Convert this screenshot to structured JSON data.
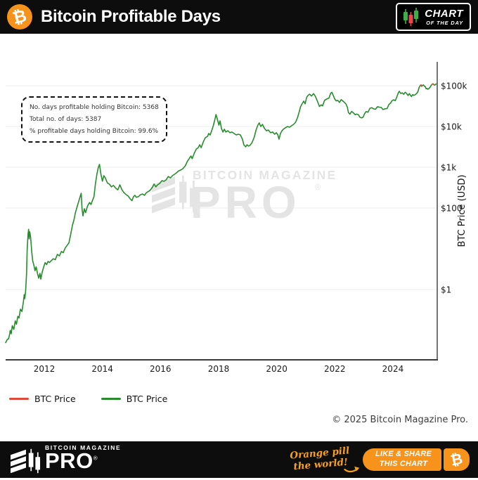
{
  "header": {
    "title": "Bitcoin Profitable Days",
    "badge_line1": "CHART",
    "badge_line2": "OF THE DAY"
  },
  "annotation": {
    "line1": "No. days profitable holding Bitcoin: 5368",
    "line2": "Total no. of days: 5387",
    "line3": "% profitable days holding Bitcoin: 99.6%"
  },
  "watermark": {
    "line1": "BITCOIN MAGAZINE",
    "line2": "PRO",
    "reg": "®"
  },
  "legend": [
    {
      "label": "BTC Price",
      "color": "#e04a3a"
    },
    {
      "label": "BTC Price",
      "color": "#288c2d"
    }
  ],
  "copyright": "© 2025 Bitcoin Magazine Pro.",
  "footer": {
    "brand_top": "BITCOIN MAGAZINE",
    "brand_main": "PRO",
    "reg": "®",
    "tagline_line1": "Orange pill",
    "tagline_line2": "the world!",
    "button_line1": "LIKE & SHARE",
    "button_line2": "THIS CHART",
    "btc_symbol": "₿"
  },
  "logo_symbol": "₿",
  "colors": {
    "accent_orange": "#f7931a",
    "line_green": "#288c2d",
    "line_red": "#e04a3a",
    "grid": "#ececec",
    "axis": "#3a3a3a",
    "watermark": "#e4e4e4"
  },
  "chart_data": {
    "type": "line",
    "title": "Bitcoin Profitable Days",
    "x_axis": {
      "ticks": [
        2012,
        2014,
        2016,
        2018,
        2020,
        2022,
        2024
      ],
      "range": [
        2010.6,
        2025.55
      ]
    },
    "y_axis": {
      "label": "BTC Price (USD)",
      "scale": "log",
      "ticks": [
        {
          "label": "$100k",
          "value": 100000
        },
        {
          "label": "$10k",
          "value": 10000
        },
        {
          "label": "$1k",
          "value": 1000
        },
        {
          "label": "$100",
          "value": 100
        },
        {
          "label": "$1",
          "value": 1
        }
      ]
    },
    "grid": true,
    "legend_position": "bottom-left",
    "series": [
      {
        "name": "BTC Price",
        "color": "#288c2d",
        "points": [
          [
            2010.67,
            0.05
          ],
          [
            2010.73,
            0.06
          ],
          [
            2010.77,
            0.062
          ],
          [
            2010.8,
            0.075
          ],
          [
            2010.83,
            0.1
          ],
          [
            2010.86,
            0.082
          ],
          [
            2010.9,
            0.13
          ],
          [
            2010.95,
            0.105
          ],
          [
            2011.0,
            0.17
          ],
          [
            2011.04,
            0.14
          ],
          [
            2011.09,
            0.22
          ],
          [
            2011.13,
            0.2
          ],
          [
            2011.18,
            0.33
          ],
          [
            2011.23,
            0.29
          ],
          [
            2011.28,
            0.49
          ],
          [
            2011.31,
            0.75
          ],
          [
            2011.33,
            0.6
          ],
          [
            2011.36,
            0.95
          ],
          [
            2011.39,
            2.5
          ],
          [
            2011.41,
            9
          ],
          [
            2011.44,
            23
          ],
          [
            2011.46,
            30
          ],
          [
            2011.48,
            17.5
          ],
          [
            2011.5,
            26
          ],
          [
            2011.53,
            19
          ],
          [
            2011.57,
            8.2
          ],
          [
            2011.6,
            5.1
          ],
          [
            2011.64,
            4.0
          ],
          [
            2011.68,
            2.9
          ],
          [
            2011.72,
            3.6
          ],
          [
            2011.77,
            2.4
          ],
          [
            2011.81,
            1.9
          ],
          [
            2011.85,
            2.5
          ],
          [
            2011.88,
            1.8
          ],
          [
            2011.93,
            2.7
          ],
          [
            2011.98,
            3.6
          ],
          [
            2012.03,
            4.6
          ],
          [
            2012.08,
            4.1
          ],
          [
            2012.13,
            4.9
          ],
          [
            2012.18,
            4.6
          ],
          [
            2012.24,
            5.1
          ],
          [
            2012.31,
            5.7
          ],
          [
            2012.38,
            5.4
          ],
          [
            2012.45,
            7.3
          ],
          [
            2012.52,
            6.7
          ],
          [
            2012.59,
            8.6
          ],
          [
            2012.65,
            8.0
          ],
          [
            2012.72,
            10.5
          ],
          [
            2012.79,
            12.3
          ],
          [
            2012.85,
            14.0
          ],
          [
            2012.9,
            21
          ],
          [
            2012.97,
            38
          ],
          [
            2013.02,
            51
          ],
          [
            2013.07,
            76
          ],
          [
            2013.14,
            113
          ],
          [
            2013.21,
            167
          ],
          [
            2013.27,
            230
          ],
          [
            2013.3,
            96
          ],
          [
            2013.33,
            64
          ],
          [
            2013.38,
            96
          ],
          [
            2013.42,
            77
          ],
          [
            2013.49,
            113
          ],
          [
            2013.56,
            137
          ],
          [
            2013.61,
            122
          ],
          [
            2013.66,
            155
          ],
          [
            2013.71,
            190
          ],
          [
            2013.76,
            385
          ],
          [
            2013.81,
            670
          ],
          [
            2013.86,
            1000
          ],
          [
            2013.9,
            1175
          ],
          [
            2013.95,
            670
          ],
          [
            2014.0,
            455
          ],
          [
            2014.05,
            620
          ],
          [
            2014.1,
            550
          ],
          [
            2014.17,
            415
          ],
          [
            2014.24,
            385
          ],
          [
            2014.31,
            330
          ],
          [
            2014.38,
            357
          ],
          [
            2014.46,
            305
          ],
          [
            2014.53,
            280
          ],
          [
            2014.6,
            370
          ],
          [
            2014.67,
            282
          ],
          [
            2014.74,
            240
          ],
          [
            2014.82,
            212
          ],
          [
            2014.89,
            196
          ],
          [
            2014.96,
            167
          ],
          [
            2015.02,
            152
          ],
          [
            2015.07,
            190
          ],
          [
            2015.12,
            205
          ],
          [
            2015.17,
            183
          ],
          [
            2015.24,
            190
          ],
          [
            2015.31,
            212
          ],
          [
            2015.38,
            221
          ],
          [
            2015.45,
            205
          ],
          [
            2015.52,
            240
          ],
          [
            2015.6,
            258
          ],
          [
            2015.66,
            282
          ],
          [
            2015.73,
            330
          ],
          [
            2015.78,
            388
          ],
          [
            2015.84,
            330
          ],
          [
            2015.9,
            370
          ],
          [
            2015.97,
            400
          ],
          [
            2016.05,
            470
          ],
          [
            2016.12,
            452
          ],
          [
            2016.19,
            490
          ],
          [
            2016.27,
            595
          ],
          [
            2016.34,
            550
          ],
          [
            2016.41,
            620
          ],
          [
            2016.48,
            672
          ],
          [
            2016.55,
            730
          ],
          [
            2016.63,
            820
          ],
          [
            2016.7,
            855
          ],
          [
            2016.77,
            925
          ],
          [
            2016.85,
            1080
          ],
          [
            2016.92,
            1370
          ],
          [
            2017.0,
            1680
          ],
          [
            2017.05,
            1890
          ],
          [
            2017.09,
            1620
          ],
          [
            2017.16,
            2200
          ],
          [
            2017.23,
            2780
          ],
          [
            2017.3,
            3030
          ],
          [
            2017.35,
            3560
          ],
          [
            2017.4,
            3030
          ],
          [
            2017.47,
            4150
          ],
          [
            2017.54,
            5290
          ],
          [
            2017.62,
            5760
          ],
          [
            2017.66,
            6750
          ],
          [
            2017.71,
            6200
          ],
          [
            2017.76,
            7860
          ],
          [
            2017.81,
            10000
          ],
          [
            2017.86,
            13750
          ],
          [
            2017.91,
            19600
          ],
          [
            2017.96,
            14900
          ],
          [
            2018.01,
            10800
          ],
          [
            2018.05,
            13750
          ],
          [
            2018.1,
            8870
          ],
          [
            2018.15,
            7300
          ],
          [
            2018.2,
            8550
          ],
          [
            2018.25,
            7300
          ],
          [
            2018.32,
            7860
          ],
          [
            2018.39,
            7050
          ],
          [
            2018.46,
            7300
          ],
          [
            2018.53,
            6750
          ],
          [
            2018.61,
            6200
          ],
          [
            2018.68,
            6470
          ],
          [
            2018.75,
            6200
          ],
          [
            2018.82,
            4880
          ],
          [
            2018.87,
            3560
          ],
          [
            2018.93,
            3170
          ],
          [
            2018.98,
            3560
          ],
          [
            2019.03,
            3300
          ],
          [
            2019.08,
            3450
          ],
          [
            2019.15,
            4020
          ],
          [
            2019.22,
            5290
          ],
          [
            2019.29,
            8200
          ],
          [
            2019.35,
            10800
          ],
          [
            2019.4,
            12250
          ],
          [
            2019.45,
            10000
          ],
          [
            2019.51,
            11250
          ],
          [
            2019.58,
            8870
          ],
          [
            2019.65,
            7860
          ],
          [
            2019.71,
            8200
          ],
          [
            2019.79,
            7050
          ],
          [
            2019.86,
            7300
          ],
          [
            2019.93,
            6470
          ],
          [
            2019.99,
            7050
          ],
          [
            2020.04,
            6200
          ],
          [
            2020.08,
            4880
          ],
          [
            2020.13,
            6750
          ],
          [
            2020.18,
            7860
          ],
          [
            2020.23,
            8550
          ],
          [
            2020.3,
            9320
          ],
          [
            2020.37,
            10000
          ],
          [
            2020.44,
            9600
          ],
          [
            2020.51,
            10400
          ],
          [
            2020.58,
            11250
          ],
          [
            2020.65,
            12700
          ],
          [
            2020.72,
            16800
          ],
          [
            2020.77,
            22200
          ],
          [
            2020.82,
            30400
          ],
          [
            2020.87,
            35600
          ],
          [
            2020.93,
            42000
          ],
          [
            2020.98,
            36000
          ],
          [
            2021.03,
            52000
          ],
          [
            2021.08,
            58000
          ],
          [
            2021.13,
            62000
          ],
          [
            2021.2,
            56000
          ],
          [
            2021.27,
            64000
          ],
          [
            2021.33,
            55000
          ],
          [
            2021.4,
            42000
          ],
          [
            2021.47,
            31000
          ],
          [
            2021.53,
            34000
          ],
          [
            2021.58,
            32000
          ],
          [
            2021.65,
            44000
          ],
          [
            2021.72,
            47000
          ],
          [
            2021.8,
            50000
          ],
          [
            2021.86,
            66000
          ],
          [
            2021.9,
            69000
          ],
          [
            2021.95,
            57000
          ],
          [
            2022.0,
            47000
          ],
          [
            2022.05,
            42500
          ],
          [
            2022.1,
            44000
          ],
          [
            2022.16,
            39000
          ],
          [
            2022.22,
            45500
          ],
          [
            2022.28,
            42000
          ],
          [
            2022.33,
            39000
          ],
          [
            2022.38,
            36000
          ],
          [
            2022.43,
            30000
          ],
          [
            2022.47,
            22000
          ],
          [
            2022.52,
            20000
          ],
          [
            2022.58,
            23500
          ],
          [
            2022.64,
            21500
          ],
          [
            2022.7,
            19500
          ],
          [
            2022.76,
            20200
          ],
          [
            2022.82,
            19200
          ],
          [
            2022.86,
            17000
          ],
          [
            2022.92,
            16300
          ],
          [
            2022.97,
            16800
          ],
          [
            2023.03,
            21000
          ],
          [
            2023.08,
            23200
          ],
          [
            2023.14,
            22400
          ],
          [
            2023.21,
            28000
          ],
          [
            2023.27,
            29000
          ],
          [
            2023.33,
            27200
          ],
          [
            2023.4,
            26500
          ],
          [
            2023.47,
            30600
          ],
          [
            2023.53,
            29800
          ],
          [
            2023.6,
            29200
          ],
          [
            2023.66,
            26000
          ],
          [
            2023.73,
            27200
          ],
          [
            2023.8,
            27600
          ],
          [
            2023.86,
            34600
          ],
          [
            2023.92,
            37600
          ],
          [
            2023.97,
            43000
          ],
          [
            2024.03,
            45200
          ],
          [
            2024.08,
            43000
          ],
          [
            2024.13,
            52000
          ],
          [
            2024.19,
            68000
          ],
          [
            2024.22,
            73000
          ],
          [
            2024.27,
            64500
          ],
          [
            2024.32,
            67000
          ],
          [
            2024.37,
            61500
          ],
          [
            2024.42,
            69000
          ],
          [
            2024.47,
            65000
          ],
          [
            2024.52,
            57500
          ],
          [
            2024.57,
            64000
          ],
          [
            2024.6,
            58500
          ],
          [
            2024.64,
            54500
          ],
          [
            2024.68,
            60500
          ],
          [
            2024.72,
            58000
          ],
          [
            2024.76,
            60000
          ],
          [
            2024.8,
            63000
          ],
          [
            2024.84,
            67500
          ],
          [
            2024.87,
            75500
          ],
          [
            2024.9,
            90500
          ],
          [
            2024.93,
            98000
          ],
          [
            2024.96,
            104000
          ],
          [
            2024.99,
            96500
          ],
          [
            2025.02,
            102000
          ],
          [
            2025.05,
            105000
          ],
          [
            2025.08,
            97500
          ],
          [
            2025.11,
            96500
          ],
          [
            2025.14,
            84500
          ],
          [
            2025.17,
            86500
          ],
          [
            2025.2,
            82000
          ],
          [
            2025.23,
            84500
          ],
          [
            2025.26,
            88000
          ],
          [
            2025.29,
            94500
          ],
          [
            2025.32,
            103000
          ],
          [
            2025.35,
            108500
          ],
          [
            2025.38,
            111000
          ],
          [
            2025.41,
            106000
          ],
          [
            2025.44,
            103500
          ],
          [
            2025.47,
            108500
          ],
          [
            2025.49,
            110500
          ]
        ]
      },
      {
        "name": "BTC Price",
        "color": "#e04a3a",
        "segments": [
          [
            [
              2024.95,
              103000
            ],
            [
              2024.97,
              104500
            ],
            [
              2024.99,
              100000
            ]
          ],
          [
            [
              2025.36,
              109500
            ],
            [
              2025.38,
              111200
            ],
            [
              2025.4,
              108000
            ]
          ]
        ]
      }
    ]
  }
}
